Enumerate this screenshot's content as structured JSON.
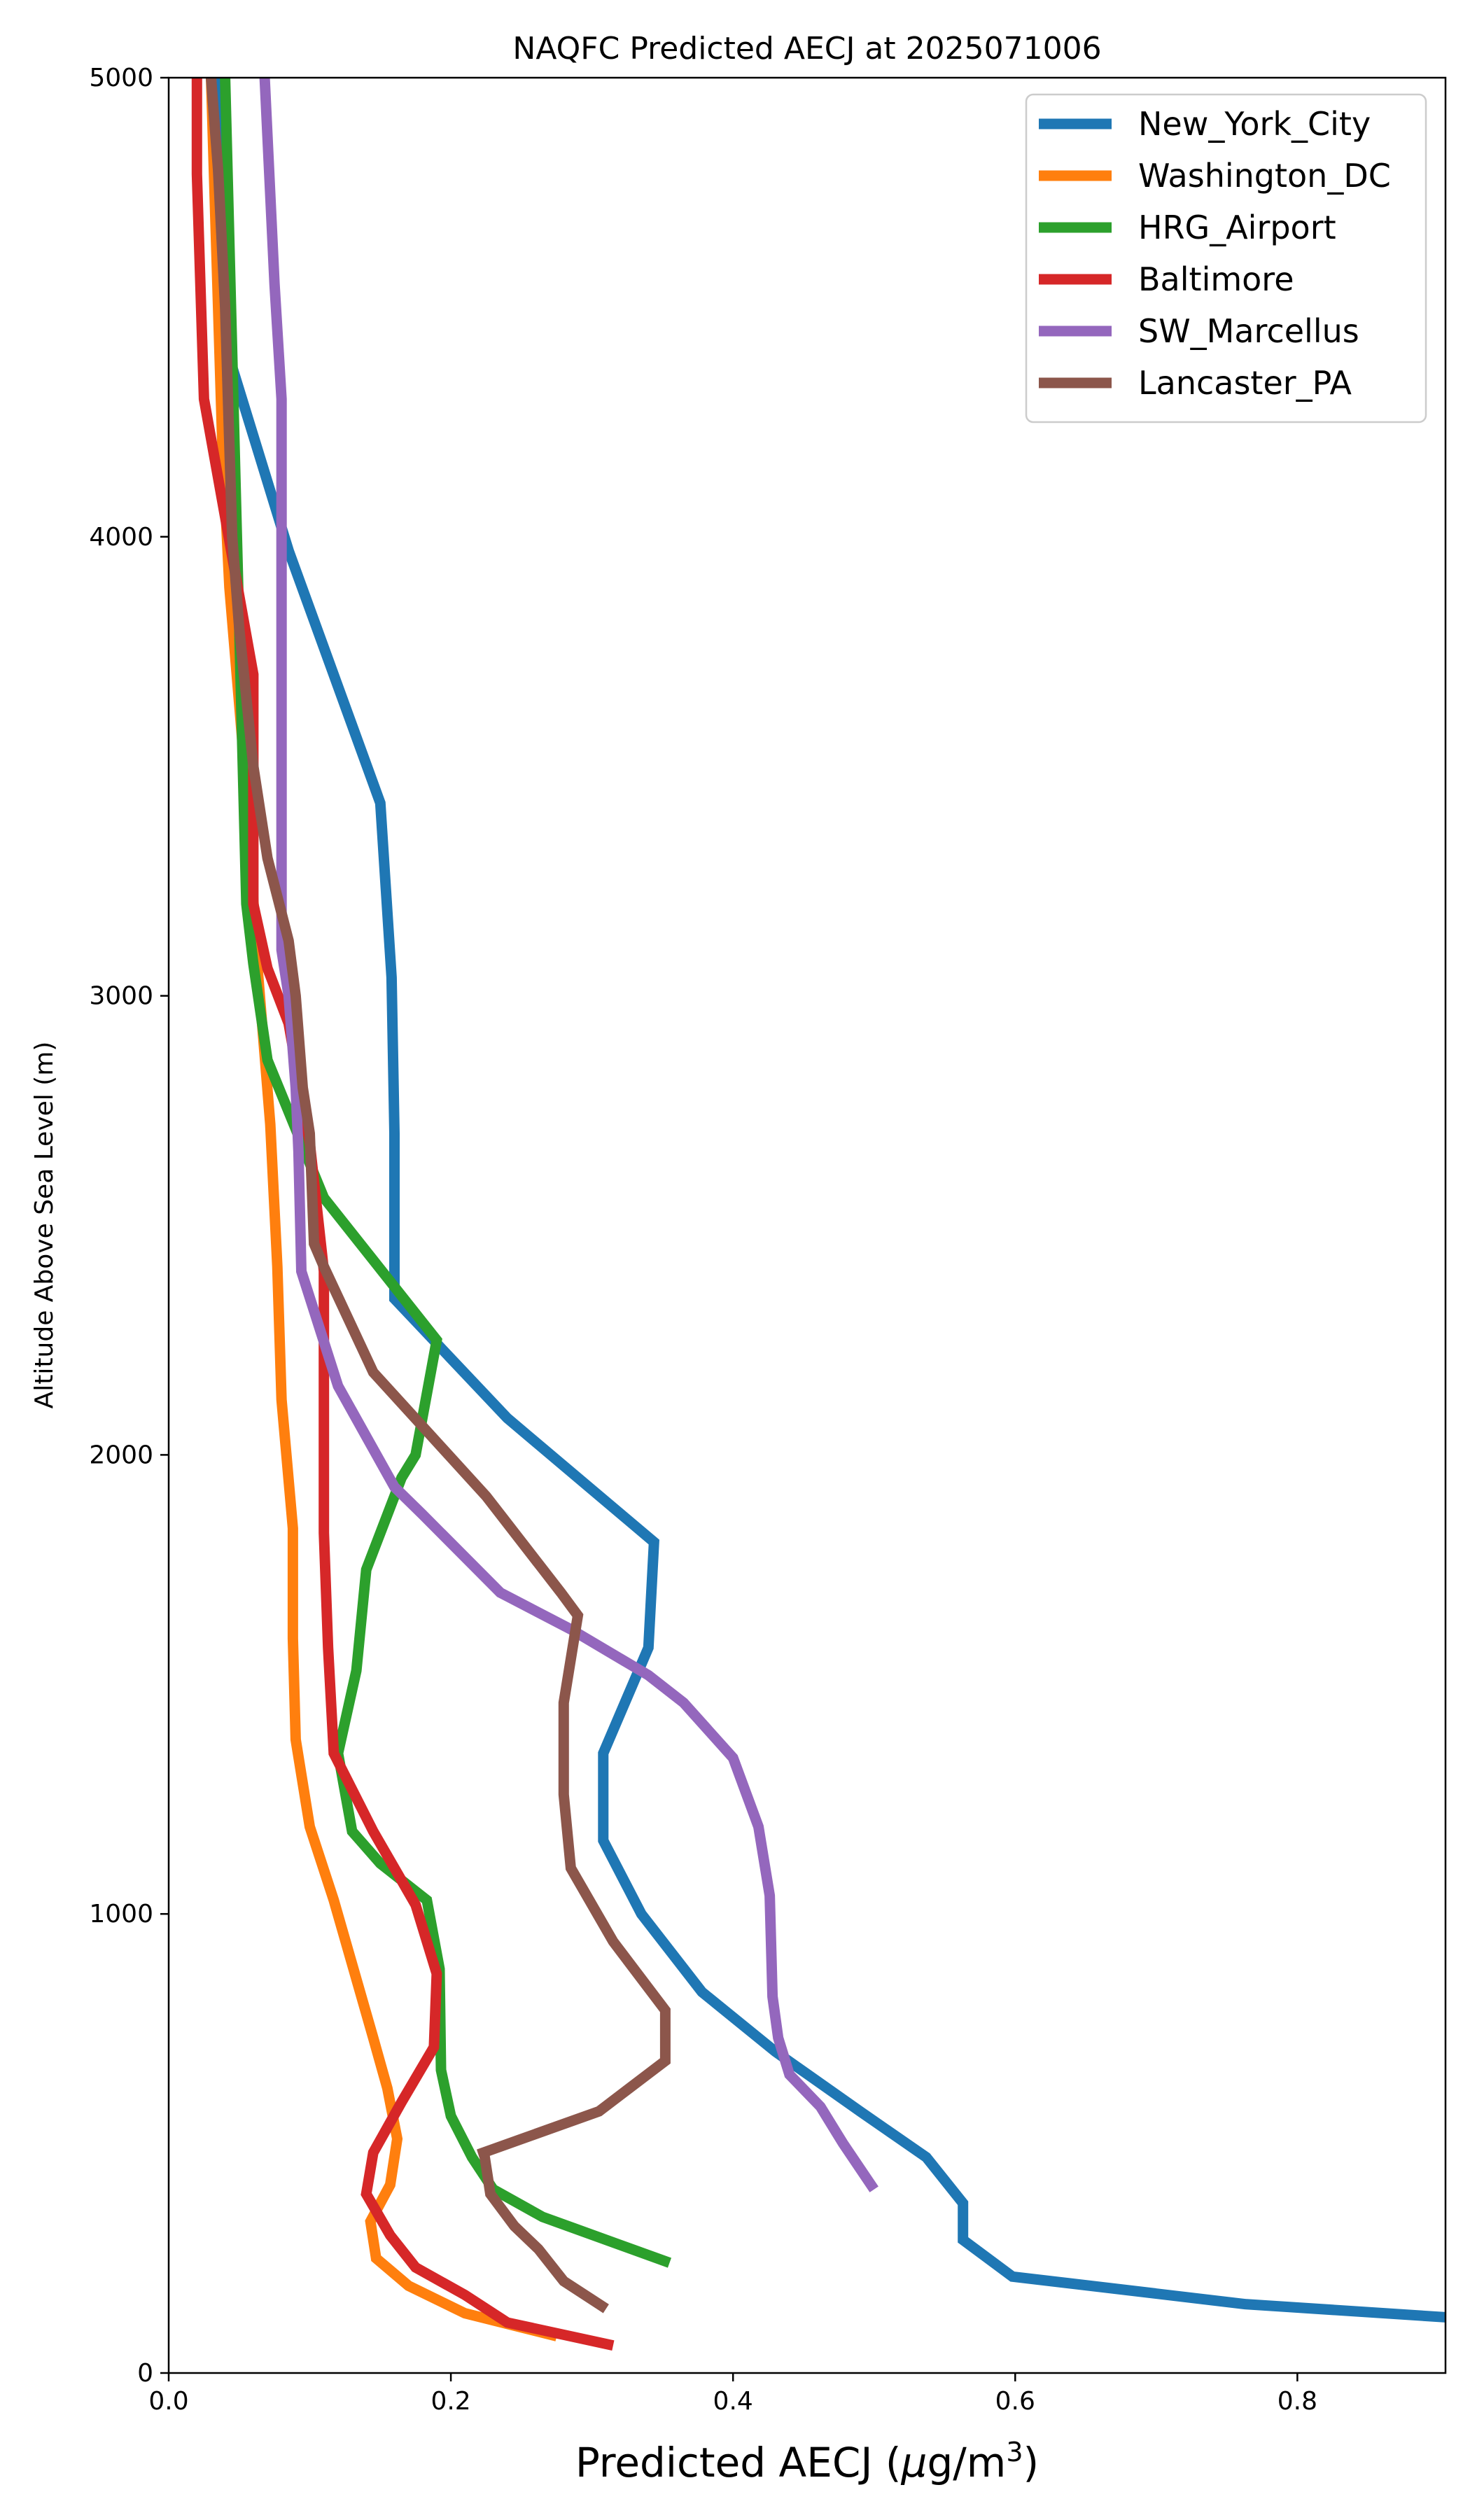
{
  "chart_data": {
    "type": "line",
    "title": "NAQFC Predicted AECJ at 2025071006",
    "xlabel": "Predicted AECJ (μg/m³)",
    "ylabel": "Altitude Above Sea Level (m)",
    "xlim": [
      0,
      0.905
    ],
    "ylim": [
      0,
      5000
    ],
    "xticks": [
      "0.0",
      "0.2",
      "0.4",
      "0.6",
      "0.8"
    ],
    "xtick_values": [
      0,
      0.2,
      0.4,
      0.6,
      0.8
    ],
    "yticks": [
      "0",
      "1000",
      "2000",
      "3000",
      "4000",
      "5000"
    ],
    "ytick_values": [
      0,
      1000,
      2000,
      3000,
      4000,
      5000
    ],
    "grid": false,
    "legend_position": "top-right",
    "series": [
      {
        "name": "New_York_City",
        "color": "#1f77b4",
        "x": [
          0.912,
          0.763,
          0.598,
          0.563,
          0.563,
          0.537,
          0.49,
          0.43,
          0.378,
          0.335,
          0.308,
          0.308,
          0.34,
          0.344,
          0.24,
          0.16,
          0.16,
          0.158,
          0.15,
          0.085,
          0.04,
          0.035
        ],
        "y": [
          120,
          150,
          210,
          290,
          370,
          470,
          570,
          700,
          830,
          1000,
          1160,
          1350,
          1580,
          1810,
          2080,
          2340,
          2700,
          3040,
          3420,
          3970,
          4420,
          5000
        ]
      },
      {
        "name": "Washington_DC",
        "color": "#ff7f0e",
        "x": [
          0.275,
          0.21,
          0.17,
          0.147,
          0.143,
          0.157,
          0.162,
          0.155,
          0.145,
          0.117,
          0.1,
          0.09,
          0.088,
          0.088,
          0.08,
          0.077,
          0.072,
          0.063,
          0.055,
          0.043,
          0.038,
          0.033,
          0.03
        ],
        "y": [
          80,
          130,
          190,
          250,
          330,
          410,
          510,
          620,
          730,
          1030,
          1190,
          1380,
          1600,
          1840,
          2120,
          2410,
          2720,
          3060,
          3450,
          3890,
          4200,
          4700,
          5000
        ]
      },
      {
        "name": "HRG_Airport",
        "color": "#2ca02c",
        "x": [
          0.355,
          0.265,
          0.23,
          0.215,
          0.2,
          0.193,
          0.192,
          0.183,
          0.15,
          0.13,
          0.12,
          0.133,
          0.14,
          0.165,
          0.175,
          0.19,
          0.11,
          0.07,
          0.06,
          0.055,
          0.05,
          0.045,
          0.04
        ],
        "y": [
          240,
          340,
          400,
          470,
          560,
          660,
          880,
          1030,
          1110,
          1180,
          1350,
          1530,
          1750,
          1950,
          2000,
          2250,
          2560,
          2860,
          3070,
          3200,
          3800,
          4400,
          5000
        ]
      },
      {
        "name": "Baltimore",
        "color": "#d62728",
        "x": [
          0.315,
          0.24,
          0.21,
          0.175,
          0.157,
          0.14,
          0.145,
          0.165,
          0.188,
          0.19,
          0.175,
          0.145,
          0.117,
          0.113,
          0.11,
          0.11,
          0.11,
          0.1,
          0.085,
          0.07,
          0.06,
          0.06,
          0.06,
          0.025,
          0.02,
          0.02
        ],
        "y": [
          60,
          110,
          170,
          230,
          300,
          390,
          480,
          590,
          710,
          870,
          1020,
          1180,
          1350,
          1580,
          1830,
          2100,
          2400,
          2680,
          2940,
          3060,
          3200,
          3600,
          3700,
          4300,
          4790,
          5000
        ]
      },
      {
        "name": "SW_Marcellus",
        "color": "#9467bd",
        "x": [
          0.5,
          0.478,
          0.462,
          0.44,
          0.432,
          0.428,
          0.426,
          0.418,
          0.4,
          0.365,
          0.34,
          0.285,
          0.235,
          0.18,
          0.16,
          0.12,
          0.094,
          0.092,
          0.09,
          0.085,
          0.08,
          0.08,
          0.08,
          0.08,
          0.08,
          0.08,
          0.075,
          0.068
        ],
        "y": [
          400,
          500,
          580,
          650,
          730,
          820,
          1040,
          1190,
          1340,
          1460,
          1520,
          1620,
          1700,
          1870,
          1930,
          2150,
          2400,
          2660,
          2800,
          3000,
          3100,
          3300,
          3500,
          4000,
          4100,
          4300,
          4550,
          5000
        ]
      },
      {
        "name": "Lancaster_PA",
        "color": "#8c564b",
        "x": [
          0.31,
          0.28,
          0.262,
          0.245,
          0.228,
          0.224,
          0.223,
          0.305,
          0.352,
          0.352,
          0.315,
          0.285,
          0.28,
          0.28,
          0.29,
          0.278,
          0.225,
          0.145,
          0.11,
          0.103,
          0.1,
          0.095,
          0.09,
          0.085,
          0.07,
          0.06,
          0.05,
          0.045,
          0.04,
          0.035,
          0.03
        ],
        "y": [
          140,
          200,
          270,
          320,
          390,
          470,
          480,
          570,
          680,
          790,
          940,
          1100,
          1260,
          1460,
          1650,
          1700,
          1910,
          2180,
          2410,
          2460,
          2700,
          2800,
          3000,
          3120,
          3300,
          3500,
          3800,
          4000,
          4500,
          4800,
          5000
        ]
      }
    ]
  }
}
